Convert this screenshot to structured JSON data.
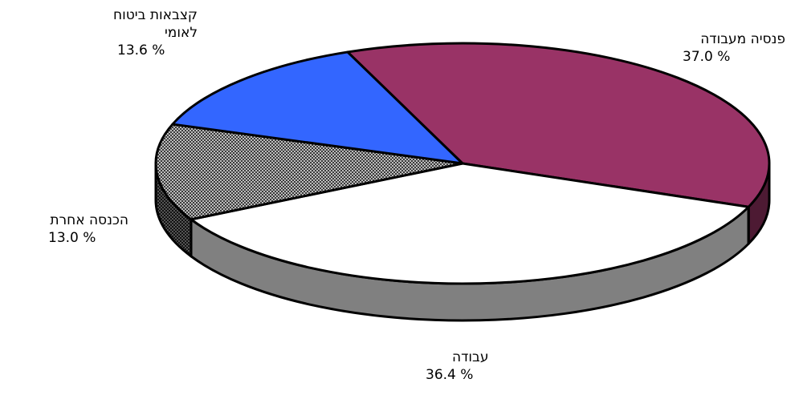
{
  "chart_data": {
    "type": "pie",
    "title": "",
    "slices": [
      {
        "label_lines": [
          "פנסיה מעבודה"
        ],
        "value": 37.0,
        "pct_text": "37.0  %",
        "color": "#993366",
        "side_color": "#4d1a33"
      },
      {
        "label_lines": [
          "עבודה"
        ],
        "value": 36.4,
        "pct_text": "36.4  %",
        "color": "#ffffff",
        "side_color": "#808080"
      },
      {
        "label_lines": [
          "הכנסה אחרת"
        ],
        "value": 13.0,
        "pct_text": "13.0  %",
        "color": "#888888",
        "side_color": "#444444"
      },
      {
        "label_lines": [
          "קצבאות ביטוח",
          "לאומי"
        ],
        "value": 13.6,
        "pct_text": "13.6  %",
        "color": "#3366ff",
        "side_color": "#1a33aa"
      }
    ]
  }
}
